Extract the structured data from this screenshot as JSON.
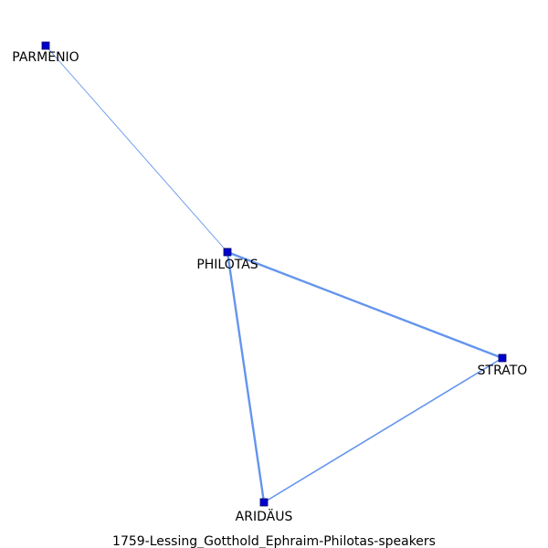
{
  "caption": "1759-Lessing_Gotthold_Ephraim-Philotas-speakers",
  "colors": {
    "edge": "#6495ed",
    "node_fill": "#0000cd",
    "node_stroke": "#000066"
  },
  "nodes": [
    {
      "id": "PARMENIO",
      "label": "PARMENIO"
    },
    {
      "id": "PHILOTAS",
      "label": "PHILOTAS"
    },
    {
      "id": "STRATO",
      "label": "STRATO"
    },
    {
      "id": "ARIDAEUS",
      "label": "ARIDÄUS"
    }
  ],
  "edges": [
    {
      "source": "PARMENIO",
      "target": "PHILOTAS",
      "weight": 1
    },
    {
      "source": "PHILOTAS",
      "target": "STRATO",
      "weight": 3
    },
    {
      "source": "PHILOTAS",
      "target": "ARIDAEUS",
      "weight": 3
    },
    {
      "source": "STRATO",
      "target": "ARIDAEUS",
      "weight": 2
    }
  ]
}
